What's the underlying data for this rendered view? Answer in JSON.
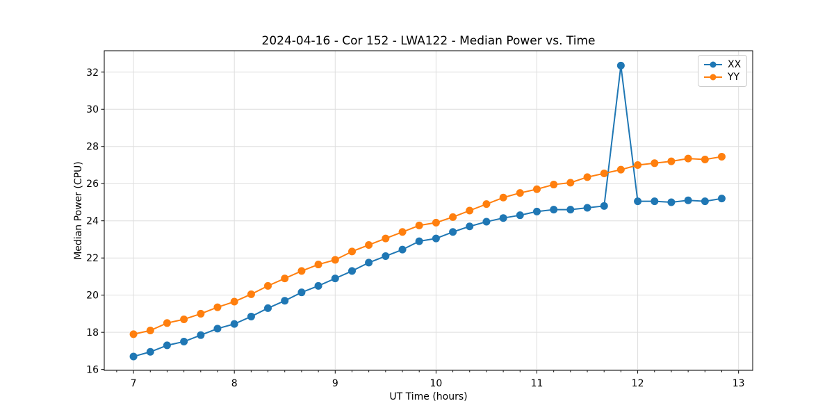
{
  "figure": {
    "background_color": "#ffffff",
    "accent_colors": {
      "xx": "#1f77b4",
      "yy": "#ff7f0e"
    }
  },
  "chart_data": {
    "type": "line",
    "title": "2024-04-16 - Cor 152 - LWA122 - Median Power vs. Time",
    "xlabel": "UT Time (hours)",
    "ylabel": "Median Power (CPU)",
    "xlim": [
      6.71,
      13.14
    ],
    "ylim": [
      15.95,
      33.15
    ],
    "xticks": [
      7,
      8,
      9,
      10,
      11,
      12,
      13
    ],
    "yticks": [
      16,
      18,
      20,
      22,
      24,
      26,
      28,
      30,
      32
    ],
    "grid": true,
    "grid_color": "#dedede",
    "legend_position": "upper right",
    "marker": "o",
    "x": [
      7.0,
      7.167,
      7.333,
      7.5,
      7.667,
      7.833,
      8.0,
      8.167,
      8.333,
      8.5,
      8.667,
      8.833,
      9.0,
      9.167,
      9.333,
      9.5,
      9.667,
      9.833,
      10.0,
      10.167,
      10.333,
      10.5,
      10.667,
      10.833,
      11.0,
      11.167,
      11.333,
      11.5,
      11.667,
      11.833,
      12.0,
      12.167,
      12.333,
      12.5,
      12.667,
      12.833
    ],
    "series": [
      {
        "name": "XX",
        "color": "#1f77b4",
        "values": [
          16.7,
          16.95,
          17.3,
          17.5,
          17.85,
          18.2,
          18.45,
          18.85,
          19.3,
          19.7,
          20.15,
          20.5,
          20.9,
          21.3,
          21.75,
          22.1,
          22.45,
          22.9,
          23.05,
          23.4,
          23.7,
          23.95,
          24.15,
          24.3,
          24.5,
          24.6,
          24.6,
          24.7,
          24.8,
          32.35,
          25.05,
          25.05,
          25.0,
          25.1,
          25.05,
          25.2
        ]
      },
      {
        "name": "YY",
        "color": "#ff7f0e",
        "values": [
          17.9,
          18.1,
          18.5,
          18.7,
          19.0,
          19.35,
          19.65,
          20.05,
          20.5,
          20.9,
          21.3,
          21.65,
          21.9,
          22.35,
          22.7,
          23.05,
          23.4,
          23.75,
          23.9,
          24.2,
          24.55,
          24.9,
          25.25,
          25.5,
          25.7,
          25.95,
          26.05,
          26.35,
          26.55,
          26.75,
          27.0,
          27.1,
          27.2,
          27.35,
          27.3,
          27.45
        ]
      }
    ]
  }
}
